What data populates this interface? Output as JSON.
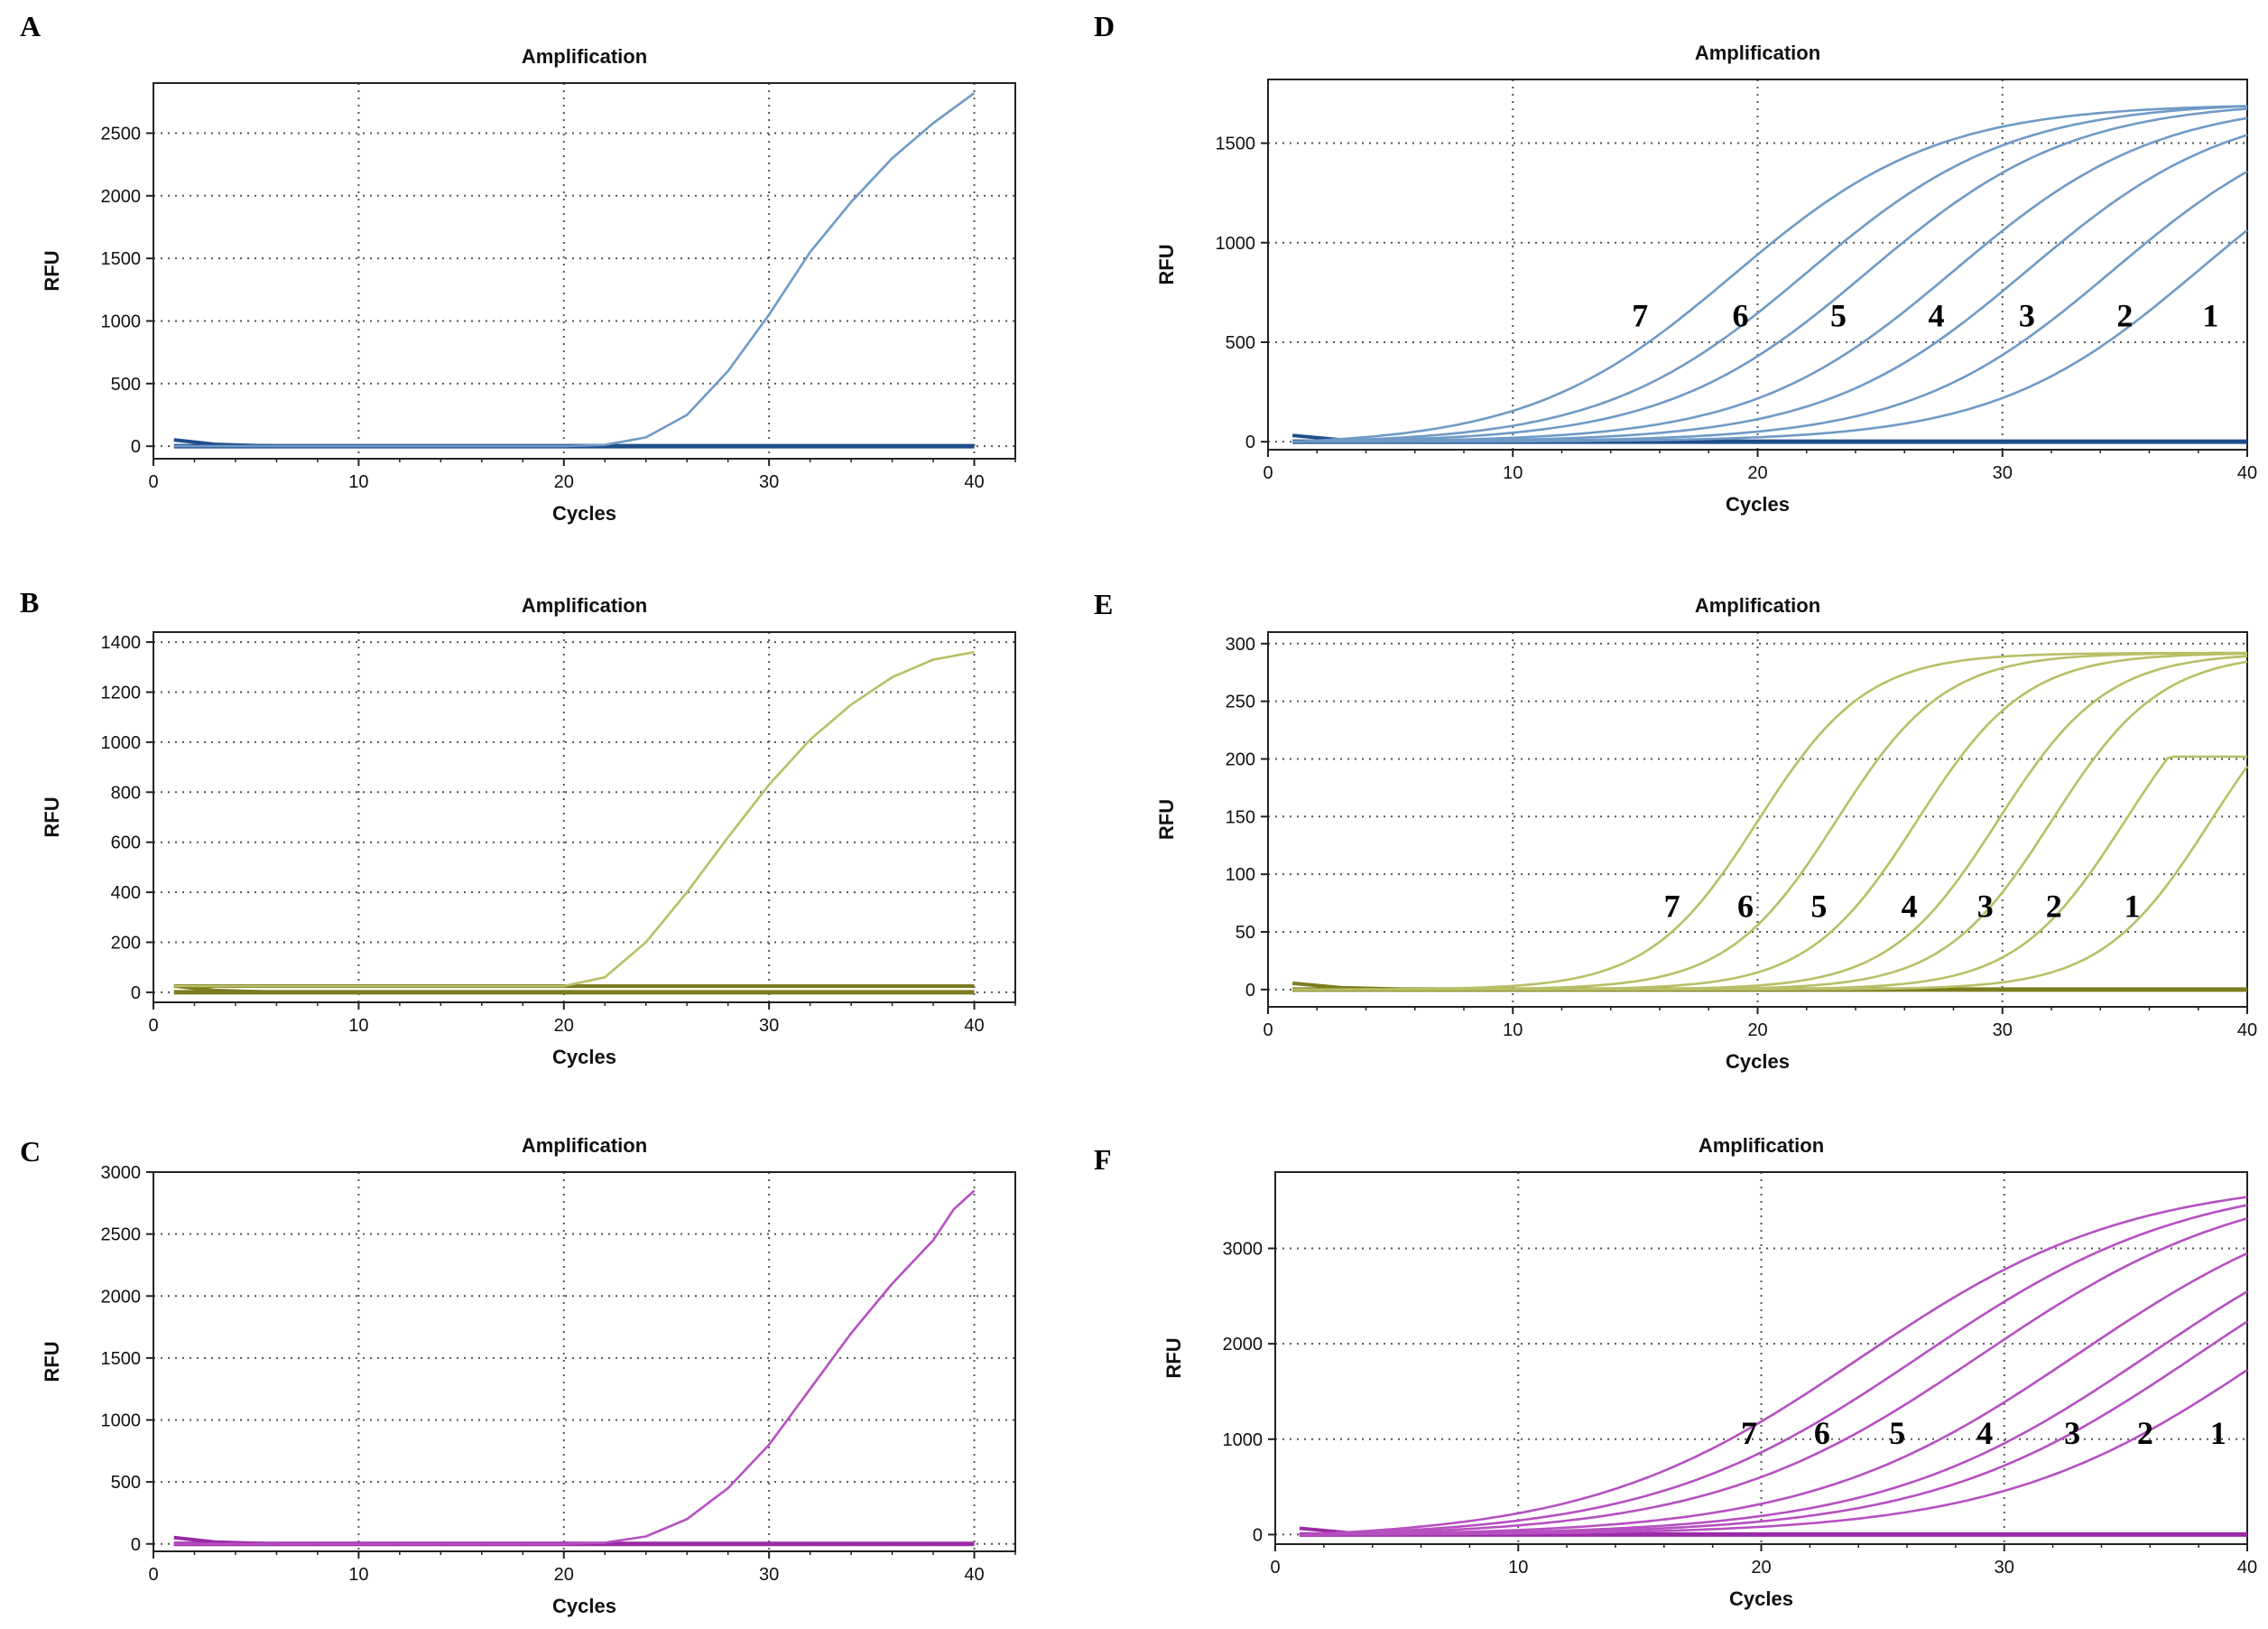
{
  "chart_data": [
    {
      "panel": "A",
      "type": "line",
      "title": "Amplification",
      "xlabel": "Cycles",
      "ylabel": "RFU",
      "xlim": [
        0,
        42
      ],
      "ylim": [
        -100,
        2900
      ],
      "xticks": [
        0,
        10,
        20,
        30,
        40
      ],
      "yticks": [
        0,
        500,
        1000,
        1500,
        2000,
        2500
      ],
      "grid": true,
      "line_color": "#6f9ac6",
      "baseline_color": "#1f4e8a",
      "series": [
        {
          "x": [
            1,
            10,
            20,
            22,
            24,
            26,
            28,
            30,
            32,
            34,
            36,
            38,
            40
          ],
          "values": [
            0,
            0,
            0,
            10,
            70,
            250,
            600,
            1050,
            1550,
            1950,
            2300,
            2580,
            2820
          ]
        }
      ]
    },
    {
      "panel": "B",
      "type": "line",
      "title": "Amplification",
      "xlabel": "Cycles",
      "ylabel": "RFU",
      "xlim": [
        0,
        42
      ],
      "ylim": [
        -40,
        1440
      ],
      "xticks": [
        0,
        10,
        20,
        30,
        40
      ],
      "yticks": [
        0,
        200,
        400,
        600,
        800,
        1000,
        1200,
        1400
      ],
      "grid": true,
      "line_color": "#b8bf66",
      "baseline_color": "#7d7b1f",
      "series": [
        {
          "x": [
            1,
            10,
            20,
            22,
            24,
            26,
            28,
            30,
            32,
            34,
            36,
            38,
            40
          ],
          "values": [
            25,
            25,
            25,
            60,
            200,
            400,
            620,
            830,
            1010,
            1150,
            1260,
            1330,
            1360
          ]
        }
      ]
    },
    {
      "panel": "C",
      "type": "line",
      "title": "Amplification",
      "xlabel": "Cycles",
      "ylabel": "RFU",
      "xlim": [
        0,
        42
      ],
      "ylim": [
        -60,
        3000
      ],
      "xticks": [
        0,
        10,
        20,
        30,
        40
      ],
      "yticks": [
        0,
        500,
        1000,
        1500,
        2000,
        2500,
        3000
      ],
      "grid": true,
      "line_color": "#b650c1",
      "baseline_color": "#9a2aa6",
      "series": [
        {
          "x": [
            1,
            10,
            20,
            22,
            24,
            26,
            28,
            30,
            32,
            34,
            36,
            38,
            39,
            40
          ],
          "values": [
            0,
            0,
            0,
            10,
            60,
            200,
            450,
            800,
            1250,
            1700,
            2100,
            2450,
            2700,
            2850
          ]
        }
      ]
    },
    {
      "panel": "D",
      "type": "line",
      "title": "Amplification",
      "xlabel": "Cycles",
      "ylabel": "RFU",
      "xlim": [
        0,
        40
      ],
      "ylim": [
        -40,
        1820
      ],
      "xticks": [
        0,
        10,
        20,
        30,
        40
      ],
      "yticks": [
        0,
        500,
        1000,
        1500
      ],
      "grid": true,
      "line_color": "#6f9ac6",
      "baseline_color": "#1f4e8a",
      "vmax": 1720,
      "k": 0.24,
      "midpoints": [
        38,
        34.5,
        31,
        28,
        24.5,
        22,
        19
      ],
      "curve_labels": [
        {
          "text": "1",
          "x": 38.5,
          "y": 580
        },
        {
          "text": "2",
          "x": 35,
          "y": 580
        },
        {
          "text": "3",
          "x": 31,
          "y": 580
        },
        {
          "text": "4",
          "x": 27.3,
          "y": 580
        },
        {
          "text": "5",
          "x": 23.3,
          "y": 580
        },
        {
          "text": "6",
          "x": 19.3,
          "y": 580
        },
        {
          "text": "7",
          "x": 15.2,
          "y": 580
        }
      ]
    },
    {
      "panel": "E",
      "type": "line",
      "title": "Amplification",
      "xlabel": "Cycles",
      "ylabel": "RFU",
      "xlim": [
        0,
        40
      ],
      "ylim": [
        -15,
        310
      ],
      "xticks": [
        0,
        10,
        20,
        30,
        40
      ],
      "yticks": [
        0,
        50,
        100,
        150,
        200,
        250,
        300
      ],
      "grid": true,
      "line_color": "#b8bf66",
      "baseline_color": "#7d7b1f",
      "vmax": 292,
      "k": 0.45,
      "midpoints": [
        38.5,
        35,
        32,
        29.8,
        26.5,
        23.2,
        20
      ],
      "curve_labels": [
        {
          "text": "1",
          "x": 35.3,
          "y": 63
        },
        {
          "text": "2",
          "x": 32.1,
          "y": 63
        },
        {
          "text": "3",
          "x": 29.3,
          "y": 63
        },
        {
          "text": "4",
          "x": 26.2,
          "y": 63
        },
        {
          "text": "5",
          "x": 22.5,
          "y": 63
        },
        {
          "text": "6",
          "x": 19.5,
          "y": 63
        },
        {
          "text": "7",
          "x": 16.5,
          "y": 63
        }
      ]
    },
    {
      "panel": "F",
      "type": "line",
      "title": "Amplification",
      "xlabel": "Cycles",
      "ylabel": "RFU",
      "xlim": [
        0,
        40
      ],
      "ylim": [
        -100,
        3800
      ],
      "xticks": [
        0,
        10,
        20,
        30,
        40
      ],
      "yticks": [
        0,
        1000,
        2000,
        3000
      ],
      "grid": true,
      "line_color": "#b650c1",
      "baseline_color": "#9a2aa6",
      "vmax": 3800,
      "k": 0.18,
      "midpoints": [
        41,
        38,
        36,
        33,
        29,
        26.5,
        24
      ],
      "curve_labels": [
        {
          "text": "1",
          "x": 38.8,
          "y": 950
        },
        {
          "text": "2",
          "x": 35.8,
          "y": 950
        },
        {
          "text": "3",
          "x": 32.8,
          "y": 950
        },
        {
          "text": "4",
          "x": 29.2,
          "y": 950
        },
        {
          "text": "5",
          "x": 25.6,
          "y": 950
        },
        {
          "text": "6",
          "x": 22.5,
          "y": 950
        },
        {
          "text": "7",
          "x": 19.5,
          "y": 950
        }
      ]
    }
  ]
}
